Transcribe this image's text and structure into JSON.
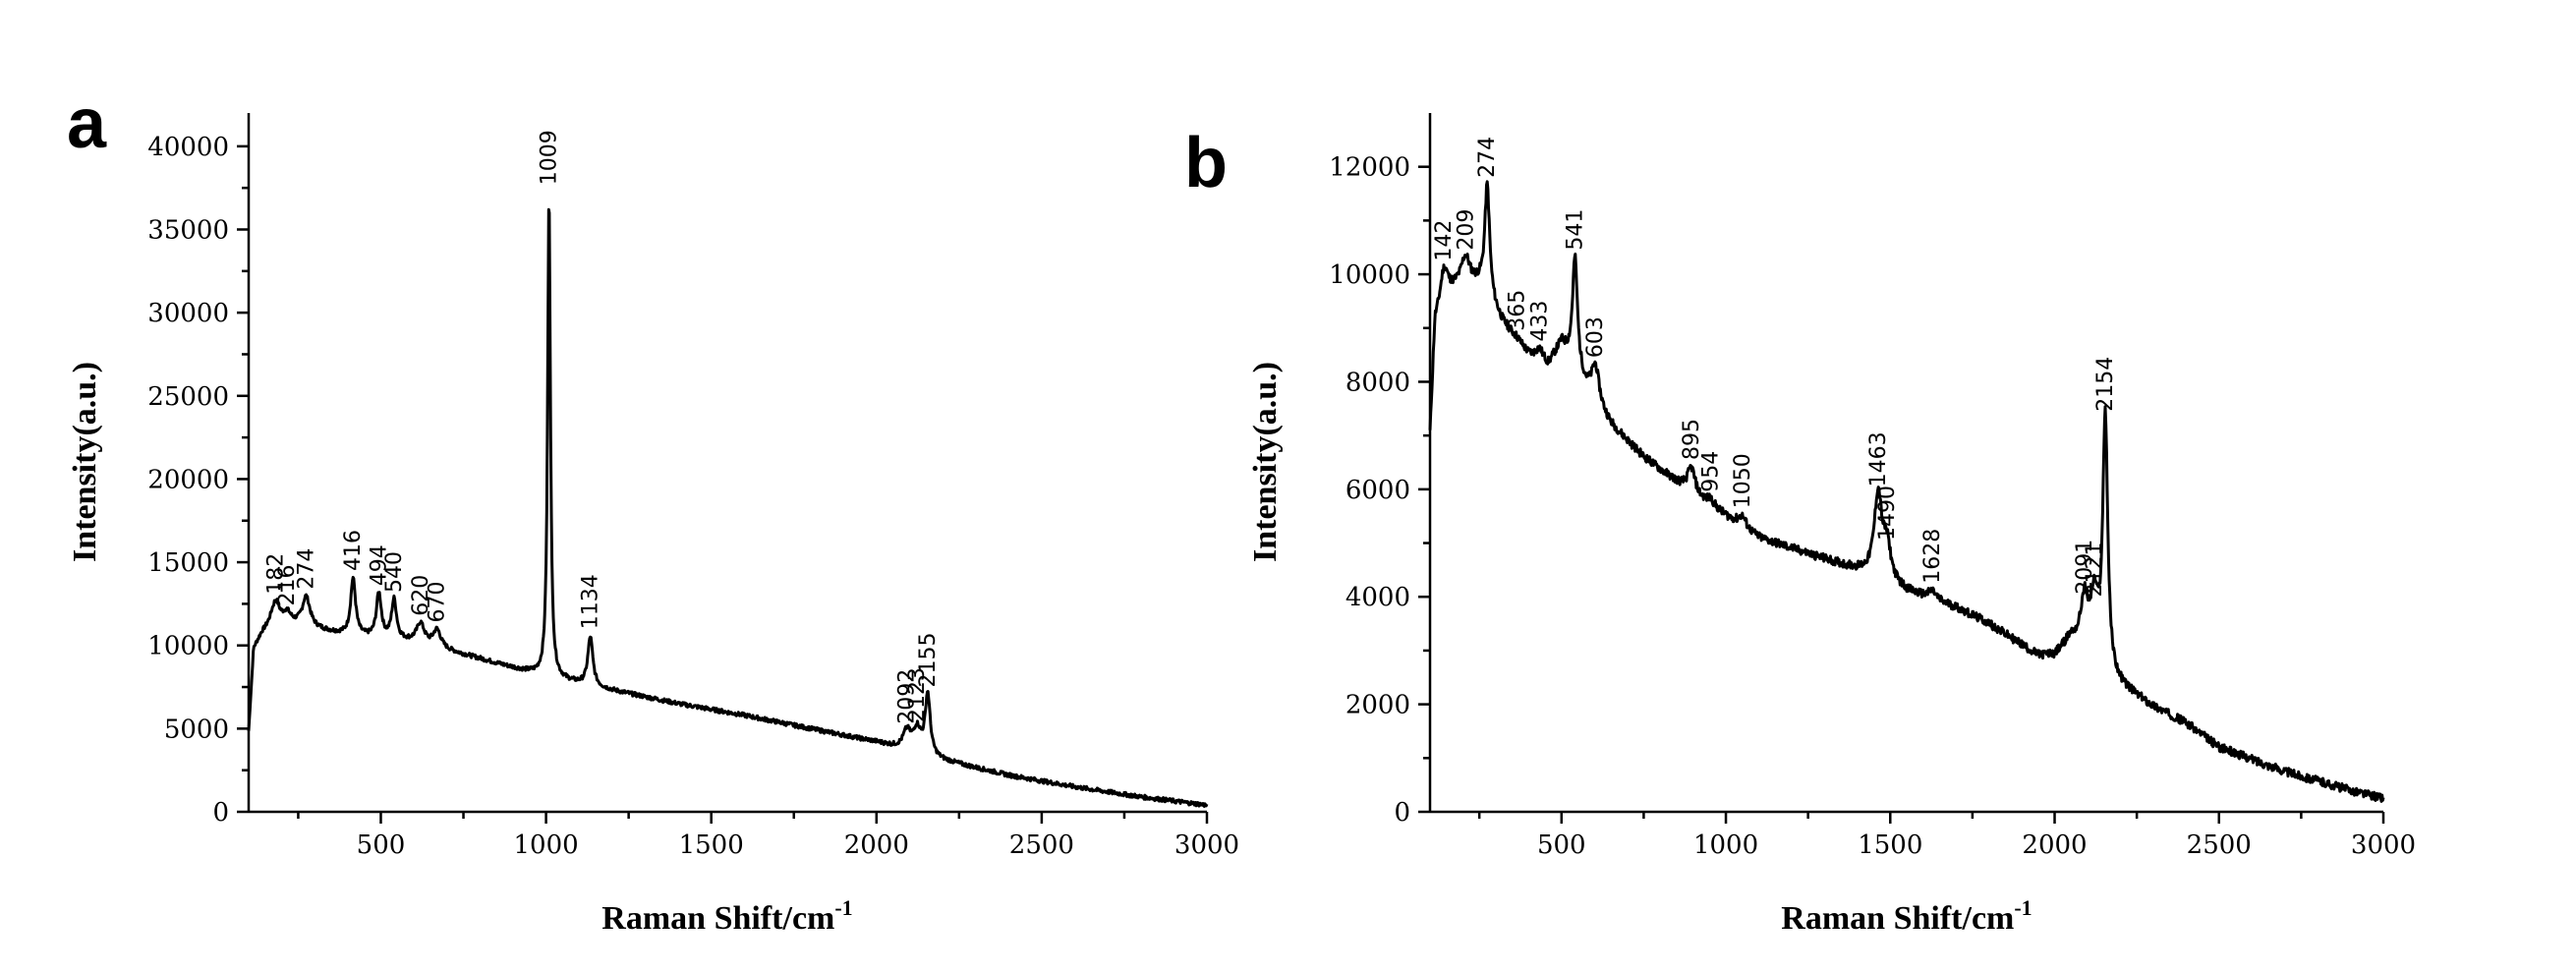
{
  "chart_data": [
    {
      "type": "line",
      "panel": "a",
      "xlabel": "Raman Shift/cm",
      "xlabel_sup": "-1",
      "ylabel": "Intensity(a.u.)",
      "xlim": [
        100,
        3000
      ],
      "ylim": [
        0,
        42000
      ],
      "x_ticks": [
        500,
        1000,
        1500,
        2000,
        2500,
        3000
      ],
      "x_tick_labels": [
        "500",
        "1000",
        "1500",
        "2000",
        "2500",
        "3000"
      ],
      "y_ticks": [
        0,
        5000,
        10000,
        15000,
        20000,
        25000,
        30000,
        35000,
        40000
      ],
      "y_tick_labels": [
        "0",
        "5000",
        "10000",
        "15000",
        "20000",
        "25000",
        "30000",
        "35000",
        "40000"
      ],
      "grid": false,
      "legend": "none",
      "baseline": [
        [
          100,
          4800
        ],
        [
          115,
          9800
        ],
        [
          140,
          10700
        ],
        [
          170,
          11300
        ],
        [
          250,
          11200
        ],
        [
          300,
          11000
        ],
        [
          400,
          10600
        ],
        [
          600,
          10200
        ],
        [
          800,
          9200
        ],
        [
          1000,
          8100
        ],
        [
          1200,
          7300
        ],
        [
          1400,
          6500
        ],
        [
          1600,
          5800
        ],
        [
          1800,
          5000
        ],
        [
          2000,
          4200
        ],
        [
          2200,
          3100
        ],
        [
          2400,
          2200
        ],
        [
          2600,
          1500
        ],
        [
          2800,
          900
        ],
        [
          3000,
          400
        ]
      ],
      "peaks": [
        {
          "x": 182,
          "y": 12600,
          "label": "182"
        },
        {
          "x": 216,
          "y": 11900,
          "label": "216"
        },
        {
          "x": 274,
          "y": 12900,
          "label": "274"
        },
        {
          "x": 416,
          "y": 14000,
          "label": "416"
        },
        {
          "x": 494,
          "y": 13100,
          "label": "494"
        },
        {
          "x": 540,
          "y": 12700,
          "label": "540"
        },
        {
          "x": 620,
          "y": 11300,
          "label": "620"
        },
        {
          "x": 670,
          "y": 10900,
          "label": "670"
        },
        {
          "x": 1009,
          "y": 37200,
          "label": "1009"
        },
        {
          "x": 1134,
          "y": 10500,
          "label": "1134"
        },
        {
          "x": 2092,
          "y": 4800,
          "label": "2092"
        },
        {
          "x": 2123,
          "y": 4900,
          "label": "2123"
        },
        {
          "x": 2155,
          "y": 7000,
          "label": "2155"
        }
      ]
    },
    {
      "type": "line",
      "panel": "b",
      "xlabel": "Raman Shift/cm",
      "xlabel_sup": "-1",
      "ylabel": "Intensity(a.u.)",
      "xlim": [
        100,
        3000
      ],
      "ylim": [
        0,
        13000
      ],
      "x_ticks": [
        500,
        1000,
        1500,
        2000,
        2500,
        3000
      ],
      "x_tick_labels": [
        "500",
        "1000",
        "1500",
        "2000",
        "2500",
        "3000"
      ],
      "y_ticks": [
        0,
        2000,
        4000,
        6000,
        8000,
        10000,
        12000
      ],
      "y_tick_labels": [
        "0",
        "2000",
        "4000",
        "6000",
        "8000",
        "10000",
        "12000"
      ],
      "grid": false,
      "legend": "none",
      "baseline": [
        [
          100,
          7000
        ],
        [
          115,
          9100
        ],
        [
          150,
          9600
        ],
        [
          200,
          9900
        ],
        [
          250,
          9800
        ],
        [
          320,
          9100
        ],
        [
          400,
          8500
        ],
        [
          460,
          8300
        ],
        [
          500,
          8700
        ],
        [
          580,
          7800
        ],
        [
          650,
          7200
        ],
        [
          750,
          6600
        ],
        [
          900,
          5900
        ],
        [
          1000,
          5500
        ],
        [
          1100,
          5100
        ],
        [
          1300,
          4700
        ],
        [
          1450,
          4400
        ],
        [
          1550,
          4100
        ],
        [
          1700,
          3800
        ],
        [
          1800,
          3500
        ],
        [
          1950,
          2900
        ],
        [
          2000,
          2900
        ],
        [
          2050,
          3200
        ],
        [
          2180,
          2400
        ],
        [
          2300,
          1950
        ],
        [
          2400,
          1650
        ],
        [
          2500,
          1200
        ],
        [
          2700,
          750
        ],
        [
          2900,
          400
        ],
        [
          3000,
          250
        ]
      ],
      "peaks": [
        {
          "x": 142,
          "y": 10100,
          "label": "142"
        },
        {
          "x": 209,
          "y": 10300,
          "label": "209"
        },
        {
          "x": 274,
          "y": 11650,
          "label": "274"
        },
        {
          "x": 365,
          "y": 8800,
          "label": "365"
        },
        {
          "x": 433,
          "y": 8600,
          "label": "433"
        },
        {
          "x": 541,
          "y": 10300,
          "label": "541"
        },
        {
          "x": 603,
          "y": 8300,
          "label": "603"
        },
        {
          "x": 895,
          "y": 6400,
          "label": "895"
        },
        {
          "x": 954,
          "y": 5800,
          "label": "954"
        },
        {
          "x": 1050,
          "y": 5500,
          "label": "1050"
        },
        {
          "x": 1463,
          "y": 5900,
          "label": "1463"
        },
        {
          "x": 1490,
          "y": 4900,
          "label": "1490"
        },
        {
          "x": 1628,
          "y": 4100,
          "label": "1628"
        },
        {
          "x": 2091,
          "y": 3900,
          "label": "2091"
        },
        {
          "x": 2121,
          "y": 3850,
          "label": "2121"
        },
        {
          "x": 2154,
          "y": 7300,
          "label": "2154"
        }
      ]
    }
  ]
}
